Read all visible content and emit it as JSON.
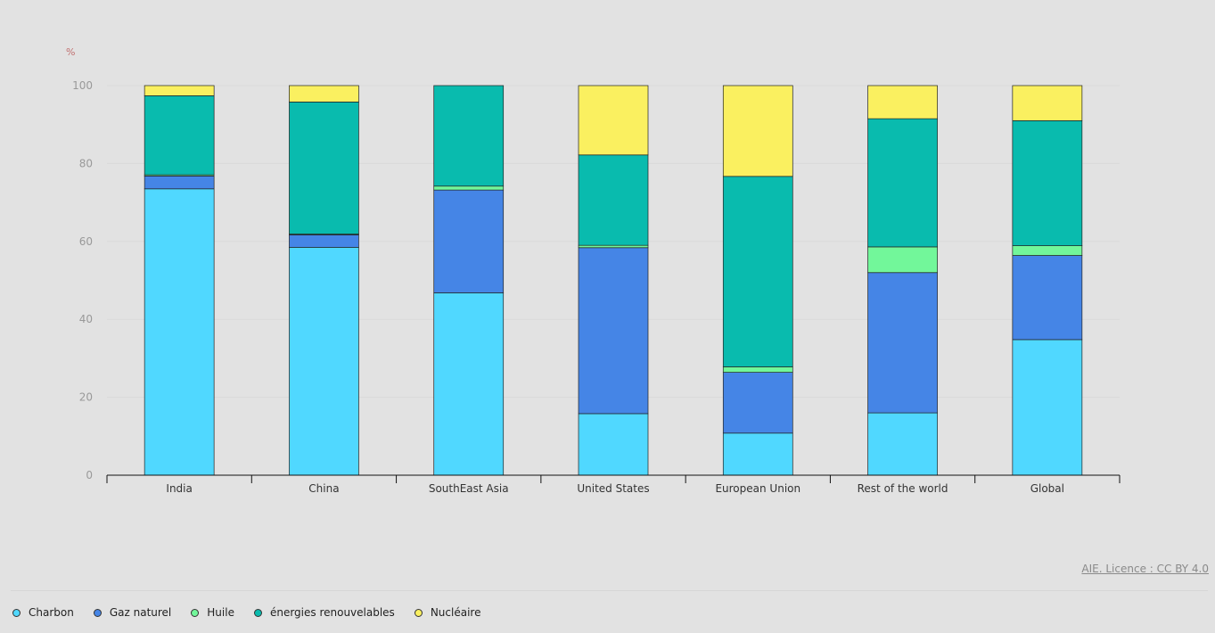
{
  "chart_data": {
    "type": "bar",
    "stacked": true,
    "unit_label": "%",
    "categories": [
      "India",
      "China",
      "SouthEast Asia",
      "United States",
      "European Union",
      "Rest of the world",
      "Global"
    ],
    "series": [
      {
        "name": "Charbon",
        "color": "#50d8ff",
        "values": [
          73.5,
          58.5,
          46.8,
          15.8,
          10.8,
          16.0,
          34.8
        ]
      },
      {
        "name": "Gaz naturel",
        "color": "#4585e6",
        "values": [
          3.3,
          3.2,
          26.4,
          42.6,
          15.6,
          36.0,
          21.6
        ]
      },
      {
        "name": "Huile",
        "color": "#72f79a",
        "values": [
          0.3,
          0.2,
          1.0,
          0.6,
          1.4,
          6.6,
          2.5
        ]
      },
      {
        "name": "énergies renouvelables",
        "color": "#09bbae",
        "values": [
          20.3,
          33.9,
          25.8,
          23.2,
          48.9,
          32.9,
          32.1
        ]
      },
      {
        "name": "Nucléaire",
        "color": "#faf060",
        "values": [
          2.6,
          4.2,
          0,
          17.8,
          23.3,
          8.5,
          9.0
        ]
      }
    ],
    "ylim": [
      0,
      100
    ],
    "yticks": [
      0,
      20,
      40,
      60,
      80,
      100
    ],
    "xlabel": "",
    "ylabel": "%"
  },
  "source": "AIE. Licence : CC BY 4.0"
}
